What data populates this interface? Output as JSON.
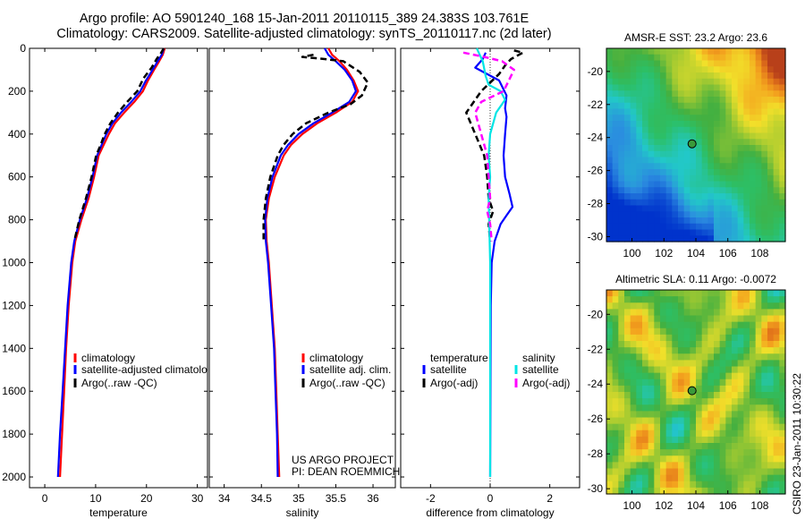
{
  "header": {
    "line1": "Argo profile: AO 5901240_168 15-Jan-2011 20110115_389 24.383S 103.761E",
    "line2": "Climatology: CARS2009. Satellite-adjusted climatology: synTS_20110117.nc (2d later)"
  },
  "credits": {
    "project": "US ARGO PROJECT",
    "pi": "PI: DEAN ROEMMICH"
  },
  "stamp": "CSIRO 23-Jan-2011 10:30:22",
  "colors": {
    "red": "#ff0000",
    "blue": "#0000ff",
    "black": "#000000",
    "cyan": "#00e5e5",
    "magenta": "#ff00ff"
  },
  "chart_data": [
    {
      "id": "temperature",
      "type": "line",
      "xlabel": "temperature",
      "xlim": [
        -3,
        32
      ],
      "ylim": [
        2050,
        0
      ],
      "xticks": [
        "0",
        "10",
        "20",
        "30"
      ],
      "xtick_values": [
        0,
        10,
        20,
        30
      ],
      "yticks": [
        "0",
        "200",
        "400",
        "600",
        "800",
        "1000",
        "1200",
        "1400",
        "1600",
        "1800",
        "2000"
      ],
      "ytick_values": [
        0,
        200,
        400,
        600,
        800,
        1000,
        1200,
        1400,
        1600,
        1800,
        2000
      ],
      "legend": [
        "climatology",
        "satellite-adjusted climatolo",
        "Argo(..raw -QC)"
      ],
      "series": [
        {
          "name": "climatology",
          "color": "red",
          "style": "solid",
          "points": [
            [
              23.6,
              0
            ],
            [
              23.2,
              30
            ],
            [
              22.5,
              60
            ],
            [
              21.5,
              100
            ],
            [
              20.3,
              150
            ],
            [
              19.3,
              200
            ],
            [
              17.6,
              250
            ],
            [
              15.6,
              300
            ],
            [
              13.8,
              350
            ],
            [
              12.6,
              400
            ],
            [
              11.6,
              450
            ],
            [
              10.6,
              500
            ],
            [
              9.7,
              600
            ],
            [
              8.6,
              700
            ],
            [
              7.2,
              800
            ],
            [
              6.0,
              900
            ],
            [
              5.4,
              1000
            ],
            [
              4.7,
              1200
            ],
            [
              4.2,
              1400
            ],
            [
              3.8,
              1600
            ],
            [
              3.4,
              1800
            ],
            [
              3.0,
              2000
            ]
          ]
        },
        {
          "name": "satellite-adjusted climatology",
          "color": "blue",
          "style": "solid",
          "points": [
            [
              23.4,
              0
            ],
            [
              23.0,
              30
            ],
            [
              22.2,
              60
            ],
            [
              21.2,
              100
            ],
            [
              19.9,
              150
            ],
            [
              18.8,
              200
            ],
            [
              17.0,
              250
            ],
            [
              15.0,
              300
            ],
            [
              13.3,
              350
            ],
            [
              12.1,
              400
            ],
            [
              11.2,
              450
            ],
            [
              10.3,
              500
            ],
            [
              9.4,
              600
            ],
            [
              8.3,
              700
            ],
            [
              6.9,
              800
            ],
            [
              5.8,
              900
            ],
            [
              5.2,
              1000
            ],
            [
              4.5,
              1200
            ],
            [
              4.0,
              1400
            ],
            [
              3.5,
              1600
            ],
            [
              3.0,
              1800
            ],
            [
              2.6,
              2000
            ]
          ]
        },
        {
          "name": "Argo(..raw -QC)",
          "color": "black",
          "style": "dashed",
          "points": [
            [
              23.4,
              0
            ],
            [
              22.9,
              20
            ],
            [
              22.0,
              50
            ],
            [
              21.0,
              90
            ],
            [
              19.4,
              140
            ],
            [
              18.2,
              200
            ],
            [
              16.2,
              250
            ],
            [
              14.4,
              300
            ],
            [
              12.9,
              350
            ],
            [
              11.8,
              400
            ],
            [
              11.0,
              450
            ],
            [
              10.1,
              500
            ],
            [
              9.2,
              600
            ],
            [
              8.1,
              700
            ],
            [
              6.8,
              800
            ],
            [
              5.8,
              900
            ]
          ]
        }
      ]
    },
    {
      "id": "salinity",
      "type": "line",
      "xlabel": "salinity",
      "xlim": [
        33.8,
        36.3
      ],
      "ylim": [
        2050,
        0
      ],
      "xticks": [
        "34",
        "34.5",
        "35",
        "35.5",
        "36"
      ],
      "xtick_values": [
        34,
        34.5,
        35,
        35.5,
        36
      ],
      "legend": [
        "climatology",
        "satellite adj. clim.",
        "Argo(..raw -QC)"
      ],
      "series": [
        {
          "name": "climatology",
          "color": "red",
          "style": "solid",
          "points": [
            [
              35.4,
              0
            ],
            [
              35.45,
              30
            ],
            [
              35.55,
              60
            ],
            [
              35.65,
              100
            ],
            [
              35.74,
              150
            ],
            [
              35.8,
              200
            ],
            [
              35.72,
              250
            ],
            [
              35.5,
              300
            ],
            [
              35.25,
              350
            ],
            [
              35.05,
              400
            ],
            [
              34.9,
              450
            ],
            [
              34.8,
              500
            ],
            [
              34.68,
              600
            ],
            [
              34.6,
              700
            ],
            [
              34.56,
              800
            ],
            [
              34.57,
              900
            ],
            [
              34.6,
              1000
            ],
            [
              34.64,
              1200
            ],
            [
              34.68,
              1400
            ],
            [
              34.7,
              1600
            ],
            [
              34.72,
              1800
            ],
            [
              34.74,
              2000
            ]
          ]
        },
        {
          "name": "satellite adj. clim.",
          "color": "blue",
          "style": "solid",
          "points": [
            [
              35.35,
              0
            ],
            [
              35.4,
              30
            ],
            [
              35.5,
              60
            ],
            [
              35.62,
              100
            ],
            [
              35.72,
              150
            ],
            [
              35.77,
              200
            ],
            [
              35.68,
              250
            ],
            [
              35.45,
              300
            ],
            [
              35.2,
              350
            ],
            [
              35.0,
              400
            ],
            [
              34.86,
              450
            ],
            [
              34.76,
              500
            ],
            [
              34.65,
              600
            ],
            [
              34.58,
              700
            ],
            [
              34.55,
              800
            ],
            [
              34.56,
              900
            ],
            [
              34.59,
              1000
            ],
            [
              34.63,
              1200
            ],
            [
              34.67,
              1400
            ],
            [
              34.69,
              1600
            ],
            [
              34.71,
              1800
            ],
            [
              34.72,
              2000
            ]
          ]
        },
        {
          "name": "Argo(..raw -QC)",
          "color": "black",
          "style": "dashed",
          "points": [
            [
              35.2,
              30
            ],
            [
              35.05,
              40
            ],
            [
              35.35,
              50
            ],
            [
              35.6,
              60
            ],
            [
              35.82,
              110
            ],
            [
              35.93,
              160
            ],
            [
              35.85,
              220
            ],
            [
              35.7,
              260
            ],
            [
              35.4,
              300
            ],
            [
              35.1,
              350
            ],
            [
              34.92,
              400
            ],
            [
              34.8,
              450
            ],
            [
              34.72,
              500
            ],
            [
              34.62,
              600
            ],
            [
              34.56,
              700
            ],
            [
              34.53,
              800
            ],
            [
              34.53,
              900
            ]
          ]
        }
      ]
    },
    {
      "id": "difference",
      "type": "line",
      "xlabel": "difference from climatology",
      "xlim": [
        -3,
        3
      ],
      "ylim": [
        2050,
        0
      ],
      "xticks": [
        "-2",
        "0",
        "2"
      ],
      "xtick_values": [
        -2,
        0,
        2
      ],
      "legend_groups": [
        {
          "title": "temperature",
          "entries": [
            "satellite",
            "Argo(-adj)"
          ]
        },
        {
          "title": "salinity",
          "entries": [
            "satellite",
            "Argo(-adj)"
          ]
        }
      ],
      "series": [
        {
          "name": "temperature satellite",
          "color": "blue",
          "style": "solid",
          "points": [
            [
              -0.15,
              20
            ],
            [
              -0.25,
              50
            ],
            [
              -0.5,
              90
            ],
            [
              0.3,
              150
            ],
            [
              0.55,
              220
            ],
            [
              0.5,
              280
            ],
            [
              0.55,
              320
            ],
            [
              0.5,
              400
            ],
            [
              0.45,
              500
            ],
            [
              0.5,
              600
            ],
            [
              0.65,
              680
            ],
            [
              0.75,
              740
            ],
            [
              0.55,
              780
            ],
            [
              0.35,
              820
            ],
            [
              0.15,
              900
            ],
            [
              0.05,
              1000
            ],
            [
              0.02,
              1200
            ],
            [
              0.0,
              2000
            ]
          ]
        },
        {
          "name": "temperature Argo(-adj)",
          "color": "black",
          "style": "dashed",
          "points": [
            [
              0.8,
              10
            ],
            [
              1.1,
              20
            ],
            [
              0.7,
              50
            ],
            [
              0.5,
              80
            ],
            [
              0.3,
              120
            ],
            [
              -0.3,
              200
            ],
            [
              -0.8,
              300
            ],
            [
              -0.5,
              400
            ],
            [
              -0.2,
              500
            ],
            [
              -0.1,
              600
            ],
            [
              -0.05,
              700
            ],
            [
              0.1,
              760
            ],
            [
              -0.05,
              820
            ],
            [
              0.0,
              900
            ]
          ]
        },
        {
          "name": "salinity satellite",
          "color": "cyan",
          "style": "solid",
          "points": [
            [
              -0.45,
              0
            ],
            [
              -0.25,
              60
            ],
            [
              -0.15,
              130
            ],
            [
              -0.05,
              170
            ],
            [
              0.35,
              200
            ],
            [
              0.5,
              240
            ],
            [
              0.2,
              300
            ],
            [
              0.0,
              400
            ],
            [
              -0.05,
              500
            ],
            [
              0.0,
              600
            ],
            [
              -0.05,
              700
            ],
            [
              0.0,
              1000
            ],
            [
              0.0,
              2000
            ]
          ]
        },
        {
          "name": "salinity Argo(-adj)",
          "color": "magenta",
          "style": "dashed",
          "points": [
            [
              -0.9,
              20
            ],
            [
              -0.2,
              40
            ],
            [
              0.4,
              60
            ],
            [
              0.8,
              100
            ],
            [
              0.45,
              200
            ],
            [
              -0.3,
              250
            ],
            [
              -0.5,
              300
            ],
            [
              -0.3,
              400
            ],
            [
              -0.1,
              500
            ],
            [
              -0.05,
              600
            ],
            [
              0.0,
              700
            ],
            [
              -0.1,
              760
            ],
            [
              0.0,
              820
            ],
            [
              0.05,
              900
            ]
          ]
        }
      ]
    },
    {
      "id": "sst-map",
      "type": "heatmap",
      "title": "AMSR-E SST: 23.2 Argo: 23.6",
      "xlim": [
        98.4,
        109.6
      ],
      "ylim": [
        -30.3,
        -18.6
      ],
      "xticks": [
        "100",
        "102",
        "104",
        "106",
        "108"
      ],
      "xtick_values": [
        100,
        102,
        104,
        106,
        108
      ],
      "yticks": [
        "-20",
        "-22",
        "-24",
        "-26",
        "-28",
        "-30"
      ],
      "ytick_values": [
        -20,
        -22,
        -24,
        -26,
        -28,
        -30
      ],
      "marker": {
        "lon": 103.76,
        "lat": -24.38
      }
    },
    {
      "id": "sla-map",
      "type": "heatmap",
      "title": "Altimetric SLA: 0.11 Argo: -0.0072",
      "xlim": [
        98.4,
        109.6
      ],
      "ylim": [
        -30.3,
        -18.6
      ],
      "xticks": [
        "100",
        "102",
        "104",
        "106",
        "108"
      ],
      "xtick_values": [
        100,
        102,
        104,
        106,
        108
      ],
      "yticks": [
        "-20",
        "-22",
        "-24",
        "-26",
        "-28",
        "-30"
      ],
      "ytick_values": [
        -20,
        -22,
        -24,
        -26,
        -28,
        -30
      ],
      "marker": {
        "lon": 103.76,
        "lat": -24.38
      }
    }
  ]
}
